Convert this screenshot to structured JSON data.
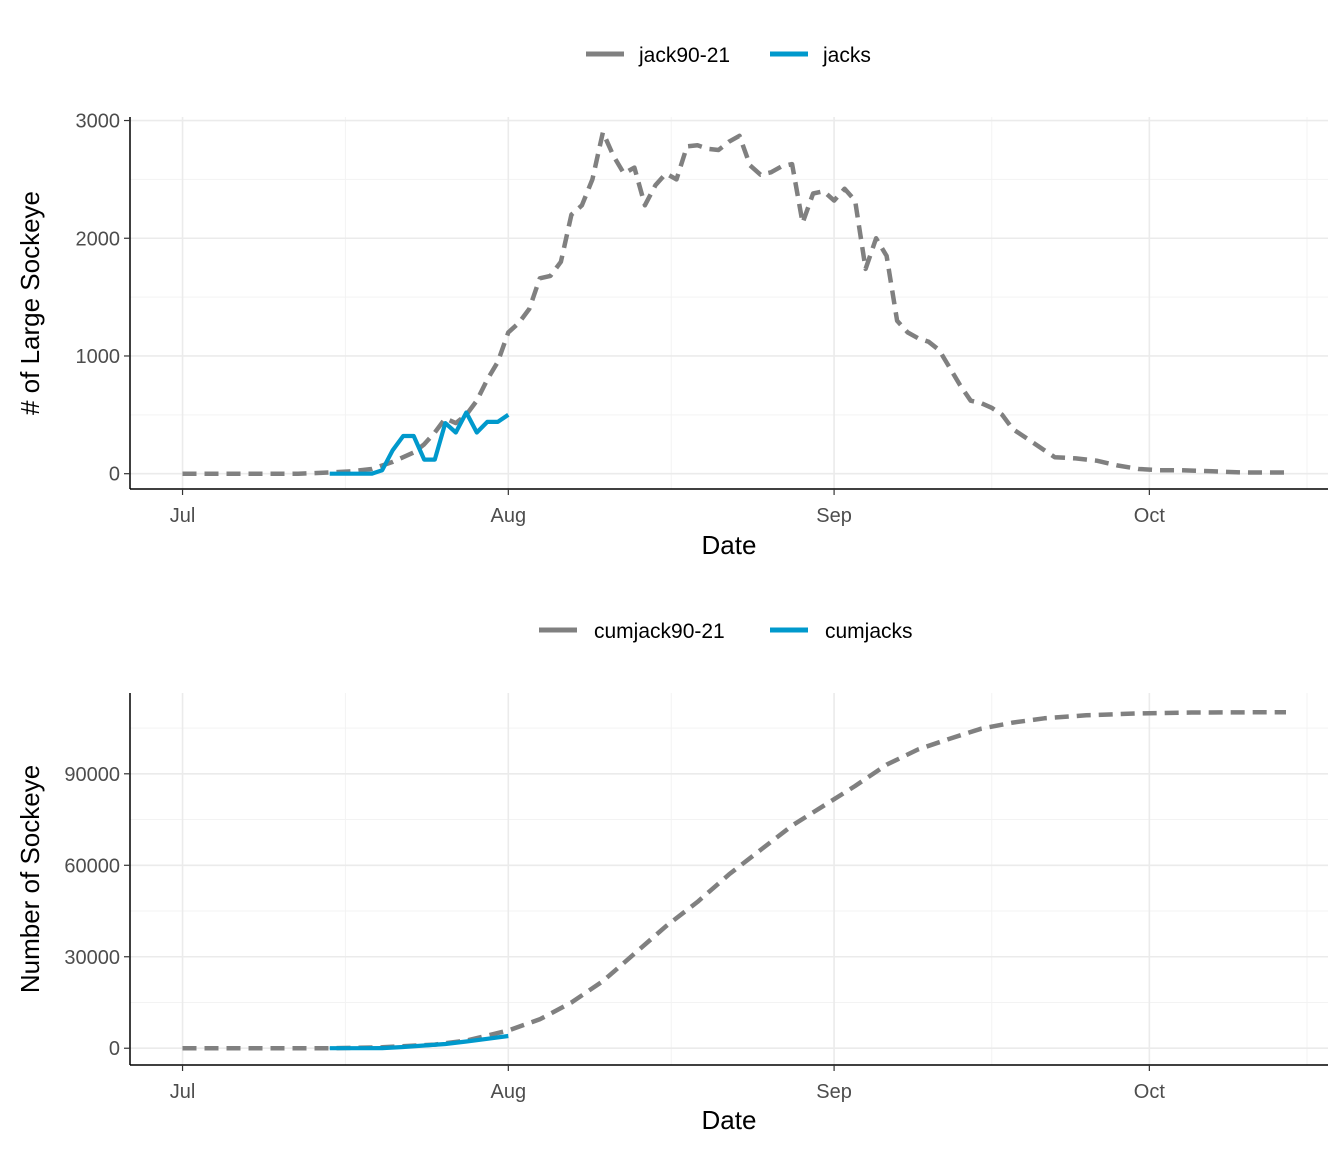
{
  "colors": {
    "historical": "#808080",
    "current": "#0099CC",
    "grid": "#ebebeb"
  },
  "chart_data": [
    {
      "type": "line",
      "xlabel": "Date",
      "ylabel": "# of Large Sockeye",
      "x_ticks": [
        {
          "label": "Jul",
          "date": "2021-07-01"
        },
        {
          "label": "Aug",
          "date": "2021-08-01"
        },
        {
          "label": "Sep",
          "date": "2021-09-01"
        },
        {
          "label": "Oct",
          "date": "2021-10-01"
        }
      ],
      "y_ticks": [
        {
          "label": "0",
          "value": 0
        },
        {
          "label": "1000",
          "value": 1000
        },
        {
          "label": "2000",
          "value": 2000
        },
        {
          "label": "3000",
          "value": 3000
        }
      ],
      "xlim": [
        "2021-06-26",
        "2021-10-18"
      ],
      "ylim": [
        -130,
        3030
      ],
      "grid": true,
      "legend_position": "top",
      "series": [
        {
          "name": "jack90-21",
          "style": "dashed",
          "color": "#808080",
          "x": [
            "2021-07-01",
            "2021-07-04",
            "2021-07-08",
            "2021-07-12",
            "2021-07-15",
            "2021-07-17",
            "2021-07-19",
            "2021-07-20",
            "2021-07-21",
            "2021-07-22",
            "2021-07-23",
            "2021-07-24",
            "2021-07-25",
            "2021-07-26",
            "2021-07-27",
            "2021-07-28",
            "2021-07-29",
            "2021-07-30",
            "2021-07-31",
            "2021-08-01",
            "2021-08-02",
            "2021-08-03",
            "2021-08-04",
            "2021-08-05",
            "2021-08-06",
            "2021-08-07",
            "2021-08-08",
            "2021-08-09",
            "2021-08-10",
            "2021-08-11",
            "2021-08-12",
            "2021-08-13",
            "2021-08-14",
            "2021-08-15",
            "2021-08-16",
            "2021-08-17",
            "2021-08-18",
            "2021-08-19",
            "2021-08-20",
            "2021-08-21",
            "2021-08-22",
            "2021-08-23",
            "2021-08-24",
            "2021-08-25",
            "2021-08-26",
            "2021-08-27",
            "2021-08-28",
            "2021-08-29",
            "2021-08-30",
            "2021-08-31",
            "2021-09-01",
            "2021-09-02",
            "2021-09-03",
            "2021-09-04",
            "2021-09-05",
            "2021-09-06",
            "2021-09-07",
            "2021-09-08",
            "2021-09-09",
            "2021-09-10",
            "2021-09-11",
            "2021-09-12",
            "2021-09-13",
            "2021-09-14",
            "2021-09-15",
            "2021-09-16",
            "2021-09-17",
            "2021-09-18",
            "2021-09-19",
            "2021-09-20",
            "2021-09-21",
            "2021-09-22",
            "2021-09-24",
            "2021-09-26",
            "2021-09-28",
            "2021-09-30",
            "2021-10-02",
            "2021-10-04",
            "2021-10-07",
            "2021-10-10",
            "2021-10-14"
          ],
          "values": [
            0,
            0,
            0,
            0,
            10,
            20,
            40,
            70,
            100,
            140,
            180,
            250,
            350,
            470,
            430,
            500,
            620,
            800,
            950,
            1200,
            1280,
            1400,
            1660,
            1680,
            1800,
            2200,
            2280,
            2500,
            2900,
            2700,
            2550,
            2600,
            2280,
            2450,
            2550,
            2500,
            2780,
            2790,
            2760,
            2750,
            2820,
            2870,
            2620,
            2540,
            2560,
            2610,
            2630,
            2130,
            2380,
            2400,
            2320,
            2420,
            2320,
            1740,
            2000,
            1850,
            1300,
            1200,
            1150,
            1120,
            1050,
            900,
            750,
            620,
            600,
            560,
            500,
            380,
            320,
            260,
            200,
            140,
            130,
            110,
            70,
            40,
            30,
            30,
            20,
            10,
            10
          ]
        },
        {
          "name": "jacks",
          "style": "solid",
          "color": "#0099CC",
          "x": [
            "2021-07-15",
            "2021-07-16",
            "2021-07-17",
            "2021-07-18",
            "2021-07-19",
            "2021-07-20",
            "2021-07-21",
            "2021-07-22",
            "2021-07-23",
            "2021-07-24",
            "2021-07-25",
            "2021-07-26",
            "2021-07-27",
            "2021-07-28",
            "2021-07-29",
            "2021-07-30",
            "2021-07-31",
            "2021-08-01"
          ],
          "values": [
            0,
            0,
            0,
            0,
            0,
            30,
            200,
            320,
            320,
            120,
            120,
            430,
            350,
            520,
            350,
            440,
            440,
            500
          ]
        }
      ]
    },
    {
      "type": "line",
      "xlabel": "Date",
      "ylabel": "Number of Sockeye",
      "x_ticks": [
        {
          "label": "Jul",
          "date": "2021-07-01"
        },
        {
          "label": "Aug",
          "date": "2021-08-01"
        },
        {
          "label": "Sep",
          "date": "2021-09-01"
        },
        {
          "label": "Oct",
          "date": "2021-10-01"
        }
      ],
      "y_ticks": [
        {
          "label": "0",
          "value": 0
        },
        {
          "label": "30000",
          "value": 30000
        },
        {
          "label": "60000",
          "value": 60000
        },
        {
          "label": "90000",
          "value": 90000
        }
      ],
      "xlim": [
        "2021-06-26",
        "2021-10-18"
      ],
      "ylim": [
        -5500,
        116500
      ],
      "grid": true,
      "legend_position": "top",
      "series": [
        {
          "name": "cumjack90-21",
          "style": "dashed",
          "color": "#808080",
          "x": [
            "2021-07-01",
            "2021-07-15",
            "2021-07-20",
            "2021-07-25",
            "2021-07-28",
            "2021-08-01",
            "2021-08-04",
            "2021-08-07",
            "2021-08-10",
            "2021-08-13",
            "2021-08-16",
            "2021-08-19",
            "2021-08-22",
            "2021-08-25",
            "2021-08-28",
            "2021-08-31",
            "2021-09-03",
            "2021-09-06",
            "2021-09-09",
            "2021-09-12",
            "2021-09-15",
            "2021-09-18",
            "2021-09-21",
            "2021-09-25",
            "2021-09-30",
            "2021-10-05",
            "2021-10-14"
          ],
          "values": [
            0,
            0,
            300,
            1200,
            2500,
            5800,
            9500,
            15000,
            22000,
            31000,
            40000,
            48000,
            57000,
            65000,
            73000,
            79500,
            86000,
            93000,
            98000,
            101500,
            104800,
            106800,
            108200,
            109200,
            109800,
            110100,
            110200
          ]
        },
        {
          "name": "cumjacks",
          "style": "solid",
          "color": "#0099CC",
          "x": [
            "2021-07-15",
            "2021-07-18",
            "2021-07-20",
            "2021-07-22",
            "2021-07-24",
            "2021-07-26",
            "2021-07-28",
            "2021-07-30",
            "2021-08-01"
          ],
          "values": [
            0,
            0,
            50,
            400,
            900,
            1400,
            2200,
            3100,
            4000
          ]
        }
      ]
    }
  ]
}
